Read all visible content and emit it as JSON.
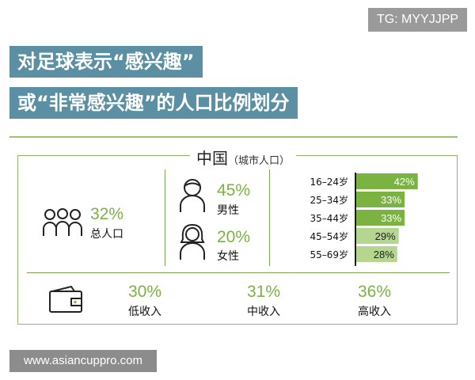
{
  "badge": "TG: MYYJJPP",
  "title": {
    "line1": "对足球表示“感兴趣”",
    "line2": "或“非常感兴趣”的人口比例划分"
  },
  "region": {
    "name": "中国",
    "note": "（城市人口）"
  },
  "total": {
    "pct": "32%",
    "label": "总人口"
  },
  "gender": {
    "male": {
      "pct": "45%",
      "label": "男性"
    },
    "female": {
      "pct": "20%",
      "label": "女性"
    }
  },
  "income": {
    "low": {
      "pct": "30%",
      "label": "低收入"
    },
    "mid": {
      "pct": "31%",
      "label": "中收入"
    },
    "high": {
      "pct": "36%",
      "label": "高收入"
    }
  },
  "colors": {
    "bar_dark": "#7ab342",
    "bar_light": "#b5d68e",
    "accent_green": "#7ab342",
    "title_bg": "#5b8fa3"
  },
  "chart_data": {
    "type": "bar",
    "categories": [
      "16–24岁",
      "25–34岁",
      "35–44岁",
      "45–54岁",
      "55–69岁"
    ],
    "values": [
      42,
      33,
      33,
      29,
      28
    ],
    "value_labels": [
      "42%",
      "33%",
      "33%",
      "29%",
      "28%"
    ]
  },
  "watermark": "www.asiancuppro.com"
}
